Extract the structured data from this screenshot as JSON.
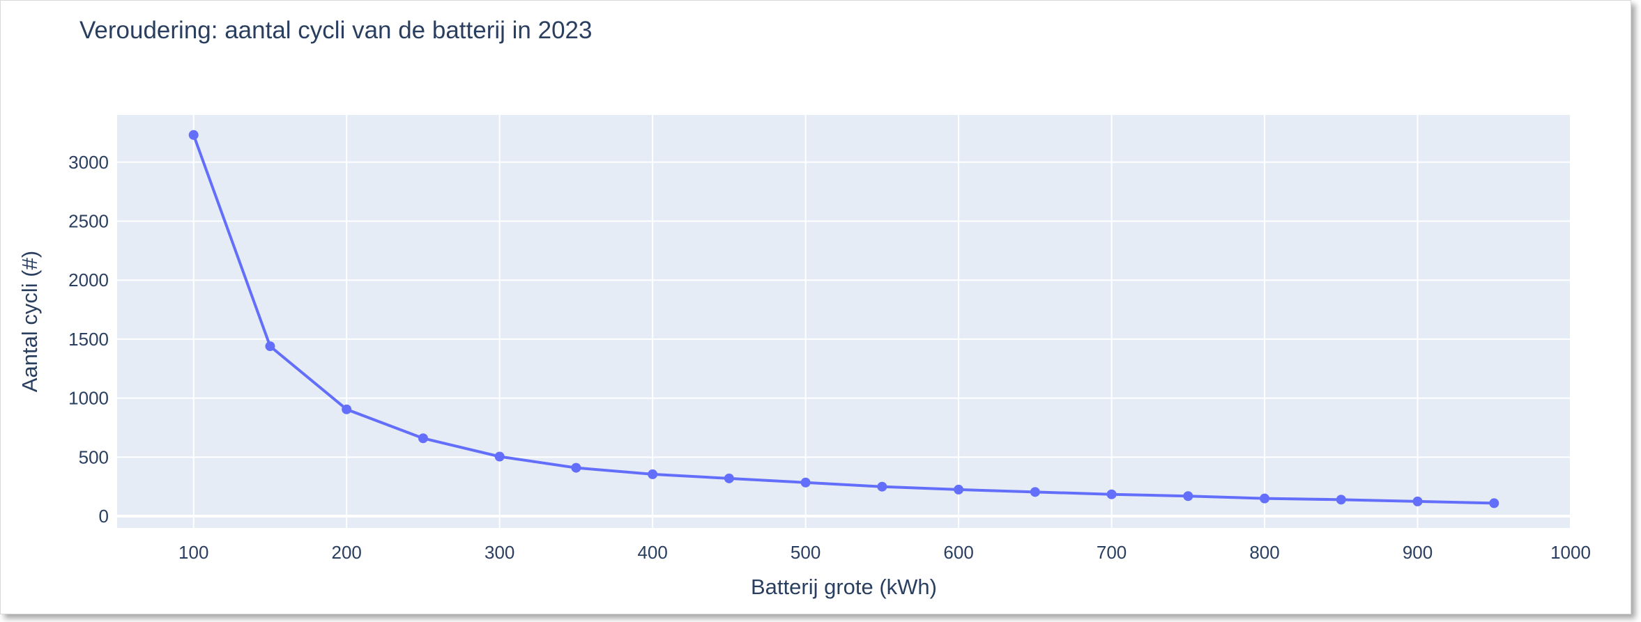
{
  "chart_data": {
    "type": "line",
    "title": "Veroudering: aantal cycli van de batterij in 2023",
    "xlabel": "Batterij grote (kWh)",
    "ylabel": "Aantal cycli (#)",
    "xlim": [
      50,
      1000
    ],
    "ylim": [
      -100,
      3400
    ],
    "x_ticks": [
      100,
      200,
      300,
      400,
      500,
      600,
      700,
      800,
      900,
      1000
    ],
    "y_ticks": [
      0,
      500,
      1000,
      1500,
      2000,
      2500,
      3000
    ],
    "grid": true,
    "legend": "none",
    "colors": {
      "line": "#636efa",
      "plot_bg": "#e5ecf6",
      "grid": "#ffffff",
      "text": "#2a3f5f"
    },
    "series": [
      {
        "x": [
          100,
          150,
          200,
          250,
          300,
          350,
          400,
          450,
          500,
          550,
          600,
          650,
          700,
          750,
          800,
          850,
          900,
          950
        ],
        "y": [
          3230,
          1440,
          905,
          660,
          505,
          410,
          355,
          320,
          285,
          250,
          225,
          205,
          185,
          170,
          150,
          140,
          125,
          110
        ]
      }
    ]
  }
}
